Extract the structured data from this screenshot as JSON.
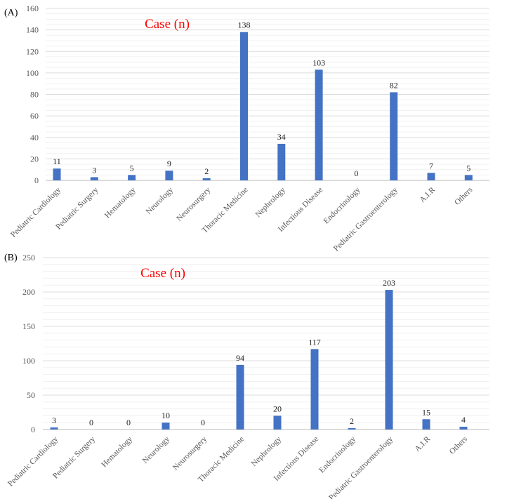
{
  "chart_data": [
    {
      "type": "bar",
      "panel_label": "(A)",
      "title": "Case (n)",
      "categories": [
        "Pediatric Cardiology",
        "Pediatric Surgery",
        "Hematology",
        "Neurology",
        "Neurosurgery",
        "Thoracic Medicine",
        "Nephrology",
        "Infectious Disease",
        "Endocrinology",
        "Pediatric Gastroenterology",
        "A.I.R",
        "Others"
      ],
      "values": [
        11,
        3,
        5,
        9,
        2,
        138,
        34,
        103,
        0,
        82,
        7,
        5
      ],
      "ylim": [
        0,
        160
      ],
      "yticks": [
        0,
        20,
        40,
        60,
        80,
        100,
        120,
        140,
        160
      ],
      "xlabel": "",
      "ylabel": "",
      "grid": true,
      "bar_color": "#4472C4",
      "title_color": "#FF0000"
    },
    {
      "type": "bar",
      "panel_label": "(B)",
      "title": "Case (n)",
      "categories": [
        "Pediatric Cardiology",
        "Pediatric Surgery",
        "Hematology",
        "Neurology",
        "Neurosurgery",
        "Thoracic Medicine",
        "Nephrology",
        "Infectious Disease",
        "Endocrinology",
        "Pediatric Gastroenterology",
        "A.I.R",
        "Others"
      ],
      "values": [
        3,
        0,
        0,
        10,
        0,
        94,
        20,
        117,
        2,
        203,
        15,
        4
      ],
      "ylim": [
        0,
        250
      ],
      "yticks": [
        0,
        50,
        100,
        150,
        200,
        250
      ],
      "xlabel": "",
      "ylabel": "",
      "grid": true,
      "bar_color": "#4472C4",
      "title_color": "#FF0000"
    }
  ]
}
